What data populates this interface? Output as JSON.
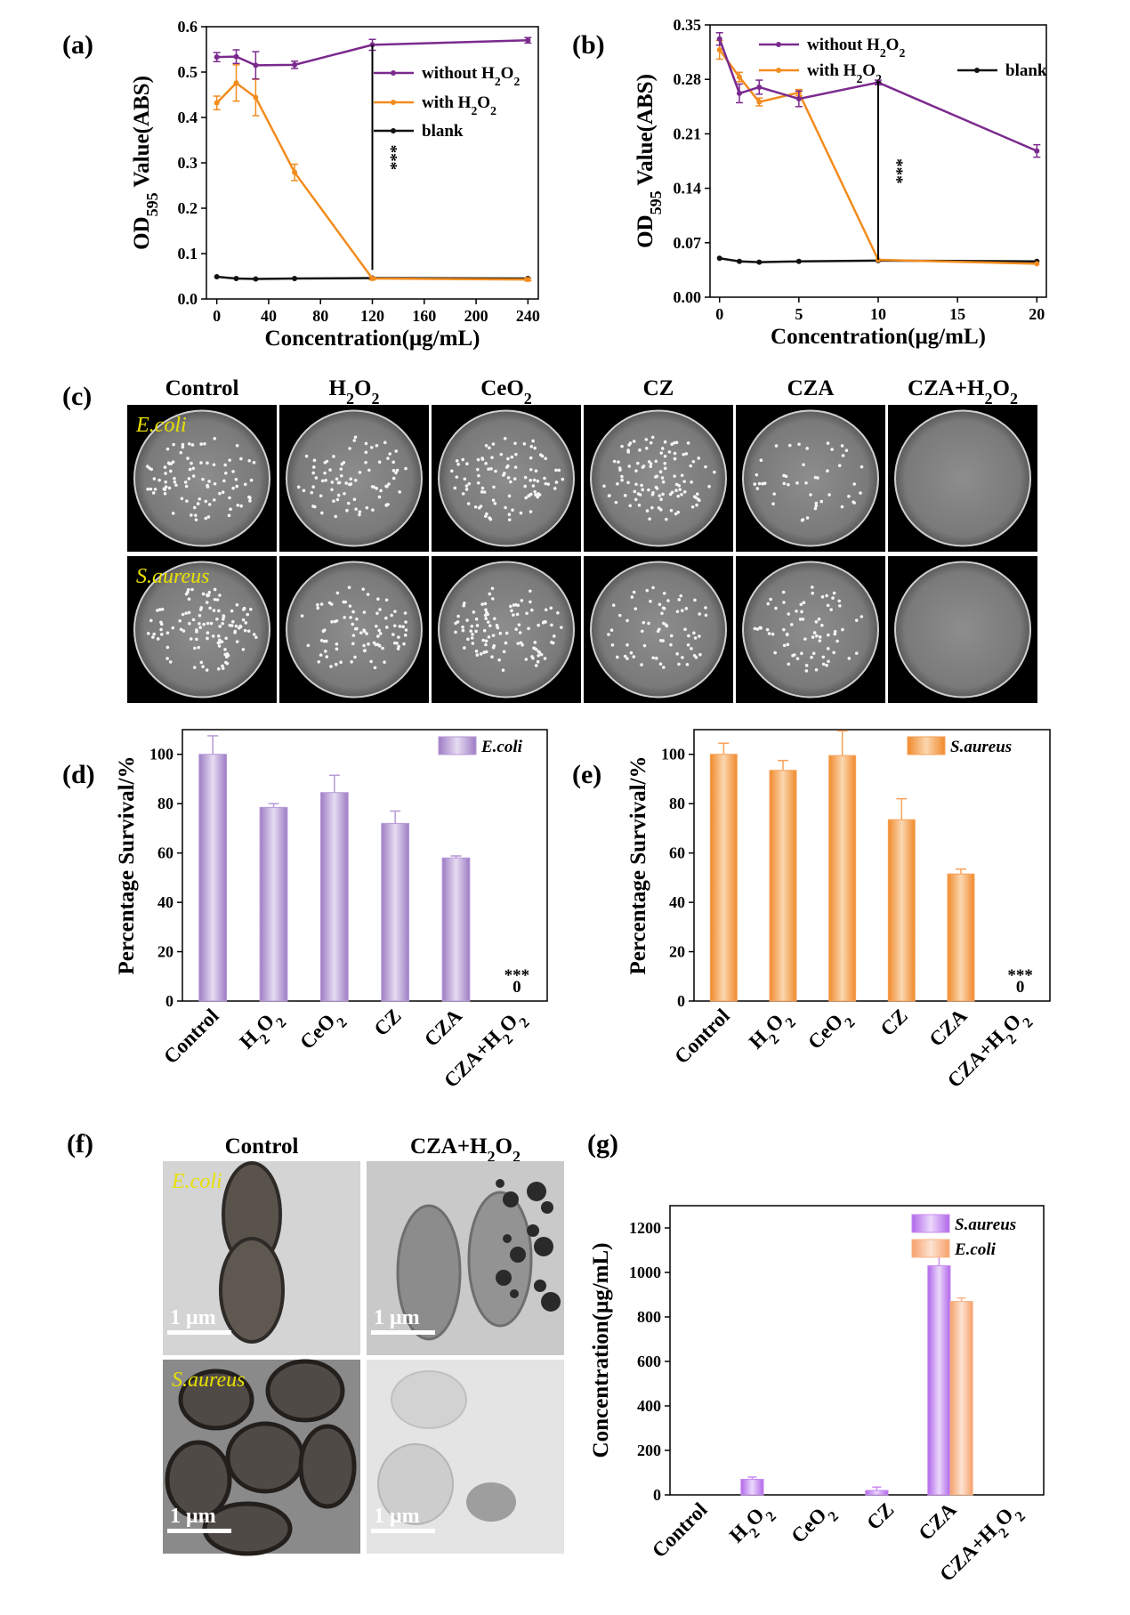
{
  "panel_labels": {
    "a": "(a)",
    "b": "(b)",
    "c": "(c)",
    "d": "(d)",
    "e": "(e)",
    "f": "(f)",
    "g": "(g)"
  },
  "colors": {
    "purple": "#7b2a8e",
    "orange": "#f28c1e",
    "black": "#111111",
    "bar_purple": "#b79ad6",
    "bar_orange": "#f7a25a",
    "bar_violet": "#c98af0",
    "bar_peach": "#f8b58c"
  },
  "plate_panel": {
    "columns": [
      "Control",
      "H₂O₂",
      "CeO₂",
      "CZ",
      "CZA",
      "CZA+H₂O₂"
    ],
    "rows": [
      "E.coli",
      "S.aureus"
    ],
    "colonies": [
      [
        90,
        80,
        95,
        105,
        45,
        0
      ],
      [
        110,
        85,
        100,
        65,
        70,
        0
      ]
    ]
  },
  "tem_panel": {
    "columns": [
      "Control",
      "CZA+H₂O₂"
    ],
    "rows": [
      "E.coli",
      "S.aureus"
    ],
    "scale_bar": "1 μm"
  },
  "significance": "***",
  "chart_data": [
    {
      "id": "a",
      "type": "line",
      "xlabel": "Concentration(μg/mL)",
      "ylabel": "OD595 Value(ABS)",
      "ylabel_main": "OD",
      "ylabel_sub": "595",
      "ylabel_rest": " Value(ABS)",
      "xlim": [
        -8,
        248
      ],
      "ylim": [
        0,
        0.6
      ],
      "xticks": [
        0,
        40,
        80,
        120,
        160,
        200,
        240
      ],
      "xtick_labels": [
        "0",
        "40",
        "80",
        "120",
        "160",
        "200",
        "240"
      ],
      "yticks": [
        0,
        0.1,
        0.2,
        0.3,
        0.4,
        0.5,
        0.6
      ],
      "ytick_labels": [
        "0.0",
        "0.1",
        "0.2",
        "0.3",
        "0.4",
        "0.5",
        "0.6"
      ],
      "series": [
        {
          "name": "without H2O2",
          "color": "#7b2a8e",
          "x": [
            0,
            15,
            30,
            60,
            120,
            240
          ],
          "y": [
            0.533,
            0.534,
            0.515,
            0.516,
            0.56,
            0.57
          ],
          "err": [
            0.01,
            0.015,
            0.03,
            0.008,
            0.012,
            0.006
          ]
        },
        {
          "name": "with H2O2",
          "color": "#f28c1e",
          "x": [
            0,
            15,
            30,
            60,
            120,
            240
          ],
          "y": [
            0.432,
            0.476,
            0.444,
            0.279,
            0.045,
            0.043
          ],
          "err": [
            0.015,
            0.04,
            0.04,
            0.018,
            0.003,
            0.003
          ]
        },
        {
          "name": "blank",
          "color": "#111111",
          "x": [
            0,
            15,
            30,
            60,
            120,
            240
          ],
          "y": [
            0.049,
            0.045,
            0.044,
            0.045,
            0.046,
            0.045
          ],
          "err": [
            0.001,
            0.001,
            0.001,
            0.001,
            0.001,
            0.001
          ]
        }
      ],
      "legend_main": [
        "without H",
        "with H",
        "blank"
      ],
      "legend": "top-right",
      "annotation": {
        "text": "***",
        "x": 120,
        "y_top": 0.56,
        "y_bottom": 0.064
      }
    },
    {
      "id": "b",
      "type": "line",
      "xlabel": "Concentration(μg/mL)",
      "ylabel": "OD595 Value(ABS)",
      "ylabel_main": "OD",
      "ylabel_sub": "595",
      "ylabel_rest": " Value(ABS)",
      "xlim": [
        -0.6,
        20.6
      ],
      "ylim": [
        0,
        0.35
      ],
      "xticks": [
        0,
        5,
        10,
        15,
        20
      ],
      "xtick_labels": [
        "0",
        "5",
        "10",
        "15",
        "20"
      ],
      "yticks": [
        0,
        0.07,
        0.14,
        0.21,
        0.28,
        0.35
      ],
      "ytick_labels": [
        "0.00",
        "0.07",
        "0.14",
        "0.21",
        "0.28",
        "0.35"
      ],
      "series": [
        {
          "name": "without H2O2",
          "color": "#7b2a8e",
          "x": [
            0,
            1.25,
            2.5,
            5,
            10,
            20
          ],
          "y": [
            0.332,
            0.262,
            0.27,
            0.255,
            0.276,
            0.188
          ],
          "err": [
            0.008,
            0.012,
            0.009,
            0.01,
            0.003,
            0.008
          ]
        },
        {
          "name": "with H2O2",
          "color": "#f28c1e",
          "x": [
            0,
            1.25,
            2.5,
            5,
            10,
            20
          ],
          "y": [
            0.318,
            0.283,
            0.251,
            0.263,
            0.048,
            0.043
          ],
          "err": [
            0.012,
            0.006,
            0.005,
            0.004,
            0.001,
            0.001
          ]
        },
        {
          "name": "blank",
          "color": "#111111",
          "x": [
            0,
            1.25,
            2.5,
            5,
            10,
            20
          ],
          "y": [
            0.05,
            0.046,
            0.045,
            0.046,
            0.047,
            0.046
          ],
          "err": [
            0.001,
            0.001,
            0.001,
            0.001,
            0.001,
            0.001
          ]
        }
      ],
      "legend_main": [
        "without H",
        "with H",
        "blank"
      ],
      "legend": "top",
      "annotation": {
        "text": "***",
        "x": 10,
        "y_top": 0.276,
        "y_bottom": 0.048
      }
    },
    {
      "id": "d",
      "type": "bar",
      "ylabel": "Percentage Survival/%",
      "categories": [
        "Control",
        "H₂O₂",
        "CeO₂",
        "CZ",
        "CZA",
        "CZA+H₂O₂"
      ],
      "values": [
        100,
        78.5,
        84.5,
        72,
        58,
        0
      ],
      "err": [
        7.5,
        1.5,
        7,
        5,
        0.8,
        0
      ],
      "ylim": [
        0,
        110
      ],
      "yticks": [
        0,
        20,
        40,
        60,
        80,
        100
      ],
      "ytick_labels": [
        "0",
        "20",
        "40",
        "60",
        "80",
        "100"
      ],
      "series_name": "E.coli",
      "color": "#b79ad6",
      "zero_label": "0",
      "legend": "top-right"
    },
    {
      "id": "e",
      "type": "bar",
      "ylabel": "Percentage Survival/%",
      "categories": [
        "Control",
        "H₂O₂",
        "CeO₂",
        "CZ",
        "CZA",
        "CZA+H₂O₂"
      ],
      "values": [
        100,
        93.5,
        99.5,
        73.5,
        51.5,
        0
      ],
      "err": [
        4.5,
        4,
        10,
        8.5,
        2,
        0
      ],
      "ylim": [
        0,
        110
      ],
      "yticks": [
        0,
        20,
        40,
        60,
        80,
        100
      ],
      "ytick_labels": [
        "0",
        "20",
        "40",
        "60",
        "80",
        "100"
      ],
      "series_name": "S.aureus",
      "color": "#f7a25a",
      "zero_label": "0",
      "legend": "top-right"
    },
    {
      "id": "g",
      "type": "bar",
      "ylabel": "Concentration(μg/mL)",
      "categories": [
        "Control",
        "H₂O₂",
        "CeO₂",
        "CZ",
        "CZA",
        "CZA+H₂O₂"
      ],
      "series": [
        {
          "name": "S.aureus",
          "color": "#c98af0",
          "values": [
            0,
            70,
            0,
            20,
            1030,
            0
          ],
          "err": [
            0,
            10,
            0,
            15,
            65,
            0
          ]
        },
        {
          "name": "E.coli",
          "color": "#f8b58c",
          "values": [
            0,
            0,
            0,
            0,
            870,
            0
          ],
          "err": [
            0,
            0,
            0,
            0,
            15,
            0
          ]
        }
      ],
      "ylim": [
        0,
        1300
      ],
      "yticks": [
        0,
        200,
        400,
        600,
        800,
        1000,
        1200
      ],
      "ytick_labels": [
        "0",
        "200",
        "400",
        "600",
        "800",
        "1000",
        "1200"
      ],
      "legend": "top-right"
    }
  ]
}
